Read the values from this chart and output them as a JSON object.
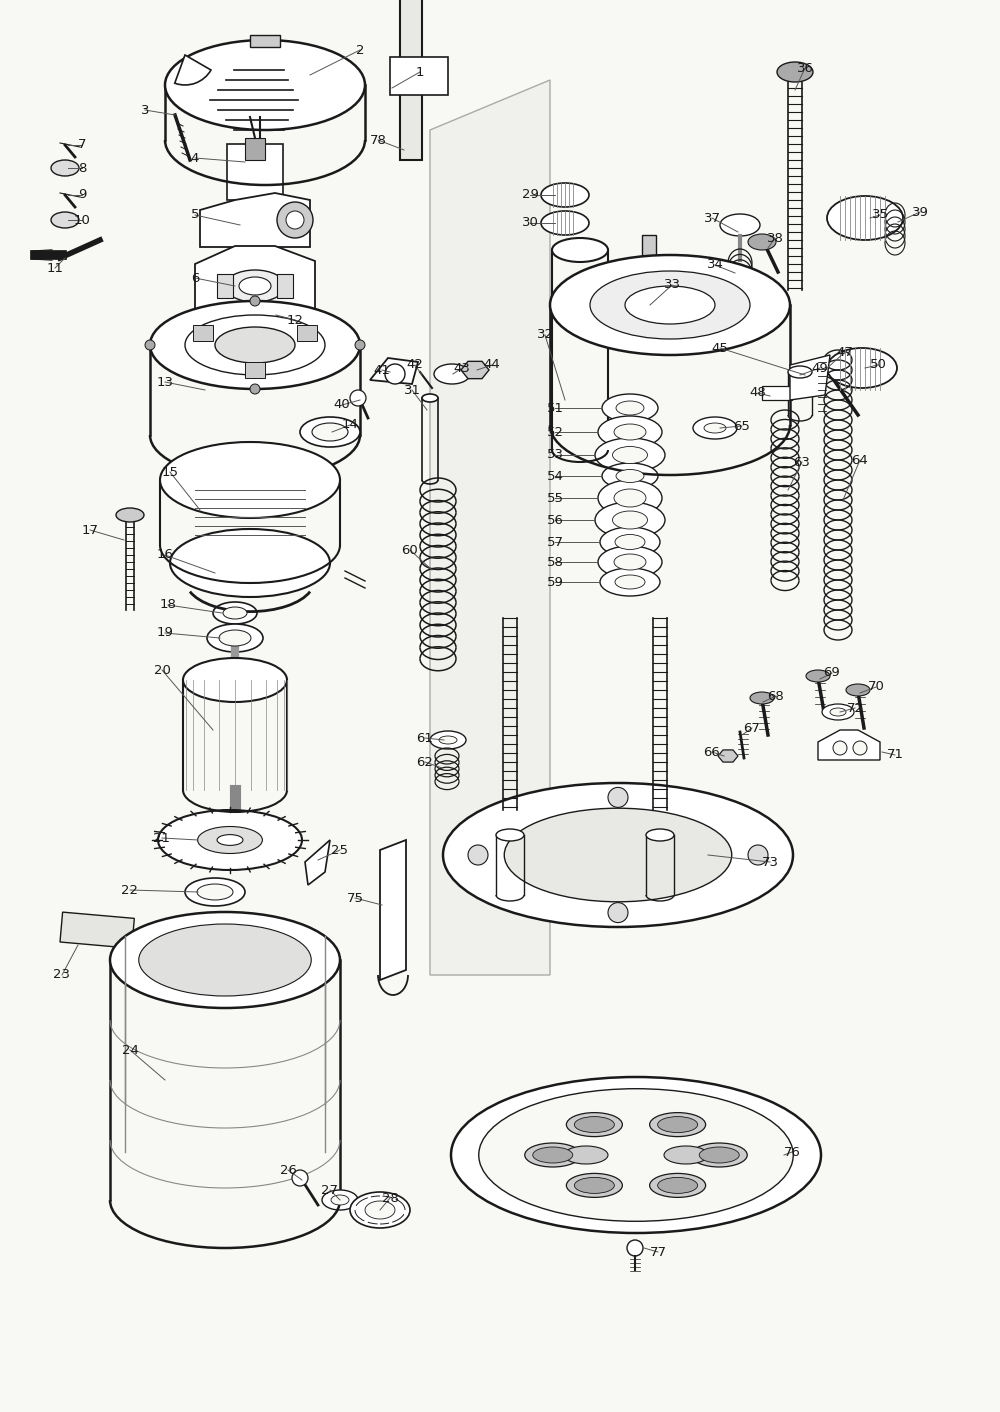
{
  "bg": "#f8f8f5",
  "lc": "#1a1a1a",
  "figsize": [
    10.0,
    14.12
  ],
  "dpi": 100,
  "xlim": [
    0,
    1000
  ],
  "ylim": [
    0,
    1412
  ]
}
